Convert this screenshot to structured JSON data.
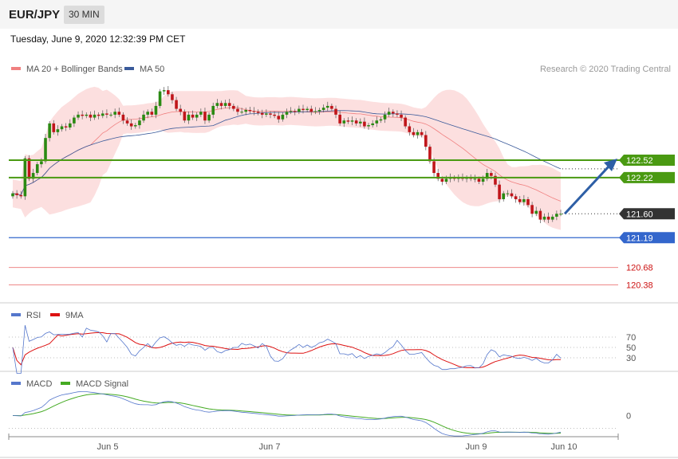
{
  "header": {
    "symbol": "EUR/JPY",
    "timeframe": "30 MIN",
    "datetime": "Tuesday, June 9, 2020 12:32:39 PM CET"
  },
  "copyright": "Research © 2020 Trading Central",
  "colors": {
    "green": "#4a9a12",
    "blue": "#3366cc",
    "red": "#cc1111",
    "dark": "#333333",
    "band": "#fcdcdc",
    "ma20": "#f08080",
    "ma50": "#3a5a9a"
  },
  "chart_data": [
    {
      "type": "candlestick",
      "ylim": [
        120.1,
        123.9
      ],
      "x_ticks": [
        "Jun 5",
        "Jun 7",
        "Jun 9",
        "Jun 10"
      ],
      "legend": [
        {
          "name": "MA 20 + Bollinger Bands",
          "color": "#f08080"
        },
        {
          "name": "MA 50",
          "color": "#3a5a9a"
        }
      ],
      "levels": [
        {
          "value": 122.52,
          "label": "122.52",
          "color": "#4a9a12",
          "style": "box"
        },
        {
          "value": 122.22,
          "label": "122.22",
          "color": "#4a9a12",
          "style": "box"
        },
        {
          "value": 121.6,
          "label": "121.60",
          "color": "#333333",
          "style": "box"
        },
        {
          "value": 121.19,
          "label": "121.19",
          "color": "#3366cc",
          "style": "box"
        },
        {
          "value": 120.68,
          "label": "120.68",
          "color": "#cc1111",
          "style": "text"
        },
        {
          "value": 120.38,
          "label": "120.38",
          "color": "#cc1111",
          "style": "text"
        }
      ],
      "arrow": {
        "from": 121.6,
        "to": 122.52,
        "direction": "up"
      },
      "closes": [
        121.95,
        121.92,
        121.9,
        122.55,
        122.2,
        122.3,
        122.45,
        122.5,
        122.9,
        123.15,
        123.0,
        123.05,
        123.1,
        123.08,
        123.15,
        123.25,
        123.3,
        123.28,
        123.3,
        123.25,
        123.3,
        123.28,
        123.32,
        123.3,
        123.3,
        123.35,
        123.3,
        123.2,
        123.15,
        123.1,
        123.12,
        123.2,
        123.3,
        123.35,
        123.3,
        123.45,
        123.7,
        123.72,
        123.65,
        123.55,
        123.4,
        123.35,
        123.2,
        123.3,
        123.25,
        123.3,
        123.35,
        123.2,
        123.3,
        123.45,
        123.5,
        123.45,
        123.5,
        123.45,
        123.4,
        123.35,
        123.35,
        123.38,
        123.36,
        123.35,
        123.33,
        123.3,
        123.32,
        123.3,
        123.28,
        123.22,
        123.3,
        123.35,
        123.36,
        123.35,
        123.4,
        123.38,
        123.4,
        123.35,
        123.36,
        123.38,
        123.42,
        123.45,
        123.4,
        123.3,
        123.15,
        123.2,
        123.18,
        123.2,
        123.15,
        123.18,
        123.1,
        123.12,
        123.15,
        123.2,
        123.22,
        123.3,
        123.35,
        123.32,
        123.3,
        123.25,
        123.1,
        123.0,
        122.95,
        123.0,
        122.95,
        122.75,
        122.5,
        122.3,
        122.2,
        122.15,
        122.2,
        122.22,
        122.2,
        122.22,
        122.2,
        122.22,
        122.2,
        122.2,
        122.15,
        122.2,
        122.3,
        122.25,
        122.1,
        121.85,
        121.95,
        121.95,
        121.9,
        121.85,
        121.8,
        121.85,
        121.75,
        121.6,
        121.65,
        121.5,
        121.55,
        121.5,
        121.55,
        121.6,
        121.6
      ]
    },
    {
      "type": "line",
      "legend": [
        {
          "name": "RSI",
          "color": "#5577cc"
        },
        {
          "name": "9MA",
          "color": "#dd1111"
        }
      ],
      "y_ticks": [
        70,
        50,
        30
      ],
      "ylim": [
        10,
        90
      ]
    },
    {
      "type": "line",
      "legend": [
        {
          "name": "MACD",
          "color": "#5577cc"
        },
        {
          "name": "MACD Signal",
          "color": "#44aa22"
        }
      ],
      "y_ticks": [
        0
      ],
      "ylim": [
        -0.25,
        0.35
      ]
    }
  ]
}
